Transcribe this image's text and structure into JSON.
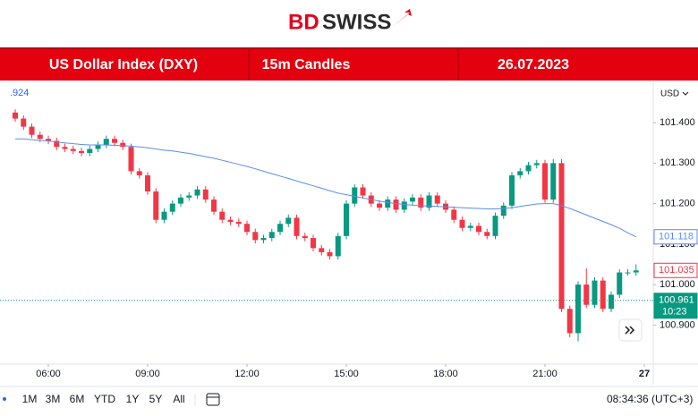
{
  "header": {
    "logo_parts": [
      "BD",
      "SWISS"
    ],
    "banner": [
      "US Dollar Index (DXY)",
      "15m Candles",
      "26.07.2023"
    ]
  },
  "chart_data": {
    "type": "candlestick",
    "legend_fragment": ".924",
    "currency": "USD",
    "x": [
      5,
      5.25,
      5.5,
      5.75,
      6,
      6.25,
      6.5,
      6.75,
      7,
      7.25,
      7.5,
      7.75,
      8,
      8.25,
      8.5,
      8.75,
      9,
      9.25,
      9.5,
      9.75,
      10,
      10.25,
      10.5,
      10.75,
      11,
      11.25,
      11.5,
      11.75,
      12,
      12.25,
      12.5,
      12.75,
      13,
      13.25,
      13.5,
      13.75,
      14,
      14.25,
      14.5,
      14.75,
      15,
      15.25,
      15.5,
      15.75,
      16,
      16.25,
      16.5,
      16.75,
      17,
      17.25,
      17.5,
      17.75,
      18,
      18.25,
      18.5,
      18.75,
      19,
      19.25,
      19.5,
      19.75,
      20,
      20.25,
      20.5,
      20.75,
      21,
      21.25,
      21.5,
      21.75,
      22,
      22.25,
      22.5,
      22.75,
      23,
      23.25,
      23.5,
      23.75
    ],
    "open": [
      101.425,
      101.41,
      101.39,
      101.37,
      101.36,
      101.355,
      101.34,
      101.335,
      101.33,
      101.325,
      101.335,
      101.345,
      101.36,
      101.35,
      101.34,
      101.28,
      101.27,
      101.23,
      101.16,
      101.18,
      101.2,
      101.215,
      101.22,
      101.235,
      101.21,
      101.18,
      101.16,
      101.155,
      101.15,
      101.13,
      101.11,
      101.115,
      101.13,
      101.15,
      101.165,
      101.12,
      101.115,
      101.09,
      101.08,
      101.07,
      101.12,
      101.2,
      101.24,
      101.22,
      101.2,
      101.19,
      101.21,
      101.185,
      101.205,
      101.215,
      101.19,
      101.22,
      101.2,
      101.185,
      101.16,
      101.14,
      101.145,
      101.13,
      101.12,
      101.17,
      101.195,
      101.27,
      101.28,
      101.295,
      101.3,
      101.21,
      101.3,
      100.94,
      100.88,
      101.0,
      100.95,
      101.01,
      100.94,
      100.975,
      101.03,
      101.03
    ],
    "high": [
      101.433,
      101.418,
      101.398,
      101.378,
      101.368,
      101.363,
      101.348,
      101.343,
      101.338,
      101.343,
      101.353,
      101.368,
      101.368,
      101.358,
      101.348,
      101.288,
      101.278,
      101.238,
      101.188,
      101.208,
      101.223,
      101.228,
      101.243,
      101.243,
      101.218,
      101.188,
      101.168,
      101.163,
      101.158,
      101.138,
      101.123,
      101.138,
      101.158,
      101.173,
      101.173,
      101.128,
      101.123,
      101.098,
      101.088,
      101.128,
      101.208,
      101.248,
      101.248,
      101.228,
      101.208,
      101.218,
      101.218,
      101.213,
      101.223,
      101.223,
      101.228,
      101.228,
      101.208,
      101.193,
      101.168,
      101.153,
      101.153,
      101.138,
      101.178,
      101.203,
      101.278,
      101.288,
      101.303,
      101.308,
      101.308,
      101.31,
      101.31,
      100.948,
      101.008,
      101.04,
      101.018,
      101.018,
      100.983,
      101.038,
      101.038,
      101.05
    ],
    "low": [
      101.402,
      101.382,
      101.362,
      101.352,
      101.347,
      101.332,
      101.327,
      101.322,
      101.317,
      101.317,
      101.327,
      101.337,
      101.342,
      101.332,
      101.272,
      101.262,
      101.222,
      101.152,
      101.152,
      101.172,
      101.192,
      101.207,
      101.212,
      101.202,
      101.172,
      101.152,
      101.147,
      101.142,
      101.122,
      101.102,
      101.102,
      101.107,
      101.122,
      101.142,
      101.112,
      101.107,
      101.082,
      101.072,
      101.062,
      101.062,
      101.112,
      101.192,
      101.212,
      101.192,
      101.182,
      101.182,
      101.177,
      101.177,
      101.197,
      101.182,
      101.182,
      101.192,
      101.177,
      101.152,
      101.132,
      101.132,
      101.122,
      101.112,
      101.112,
      101.162,
      101.187,
      101.262,
      101.272,
      101.287,
      101.202,
      101.202,
      100.932,
      100.87,
      100.86,
      100.942,
      100.942,
      100.932,
      100.932,
      100.967,
      101.022,
      101.022
    ],
    "close": [
      101.41,
      101.39,
      101.37,
      101.36,
      101.355,
      101.34,
      101.335,
      101.33,
      101.325,
      101.335,
      101.345,
      101.36,
      101.35,
      101.34,
      101.28,
      101.27,
      101.23,
      101.16,
      101.18,
      101.2,
      101.215,
      101.22,
      101.235,
      101.21,
      101.18,
      101.16,
      101.155,
      101.15,
      101.13,
      101.11,
      101.115,
      101.13,
      101.15,
      101.165,
      101.12,
      101.115,
      101.09,
      101.08,
      101.07,
      101.12,
      101.2,
      101.24,
      101.22,
      101.2,
      101.19,
      101.21,
      101.185,
      101.205,
      101.215,
      101.19,
      101.22,
      101.2,
      101.185,
      101.16,
      101.14,
      101.145,
      101.13,
      101.12,
      101.17,
      101.195,
      101.27,
      101.28,
      101.295,
      101.3,
      101.21,
      101.3,
      100.94,
      100.88,
      101.0,
      100.95,
      101.01,
      100.94,
      100.975,
      101.03,
      101.03,
      101.035
    ],
    "ma_values": [
      101.36,
      101.36,
      101.358,
      101.356,
      101.355,
      101.352,
      101.35,
      101.348,
      101.346,
      101.345,
      101.345,
      101.345,
      101.344,
      101.343,
      101.342,
      101.34,
      101.338,
      101.335,
      101.332,
      101.33,
      101.327,
      101.324,
      101.32,
      101.316,
      101.312,
      101.307,
      101.302,
      101.297,
      101.292,
      101.286,
      101.28,
      101.274,
      101.268,
      101.262,
      101.256,
      101.25,
      101.244,
      101.238,
      101.232,
      101.226,
      101.222,
      101.218,
      101.214,
      101.21,
      101.206,
      101.203,
      101.2,
      101.198,
      101.196,
      101.195,
      101.194,
      101.193,
      101.192,
      101.191,
      101.19,
      101.189,
      101.188,
      101.187,
      101.187,
      101.188,
      101.19,
      101.193,
      101.196,
      101.199,
      101.2,
      101.2,
      101.195,
      101.188,
      101.18,
      101.172,
      101.164,
      101.156,
      101.148,
      101.139,
      101.128,
      101.118
    ],
    "ma_color": "#5b8def",
    "up_color": "#089981",
    "down_color": "#f23645",
    "xlim": [
      4.54,
      24.27
    ],
    "ylim": [
      100.808,
      101.493
    ],
    "xticks": [
      {
        "value": 6,
        "label": "06:00"
      },
      {
        "value": 9,
        "label": "09:00"
      },
      {
        "value": 12,
        "label": "12:00"
      },
      {
        "value": 15,
        "label": "15:00"
      },
      {
        "value": 18,
        "label": "18:00"
      },
      {
        "value": 21,
        "label": "21:00"
      },
      {
        "value": 24,
        "label": "27"
      }
    ],
    "yticks": [
      {
        "value": 100.9,
        "label": "100.900"
      },
      {
        "value": 101.0,
        "label": "101.000"
      },
      {
        "value": 101.1,
        "label": "101.100"
      },
      {
        "value": 101.2,
        "label": "101.200"
      },
      {
        "value": 101.3,
        "label": "101.300"
      },
      {
        "value": 101.4,
        "label": "101.400"
      }
    ],
    "grid": false,
    "ma_price": {
      "value": 101.118,
      "label": "101.118"
    },
    "last_price": {
      "value": 101.035,
      "label": "101.035"
    },
    "current_price": {
      "value": 100.961,
      "label": "100.961"
    },
    "countdown": "10:23"
  },
  "toolbar": {
    "ranges": [
      "1M",
      "3M",
      "6M",
      "YTD",
      "1Y",
      "5Y",
      "All"
    ],
    "clock": "08:34:36 (UTC+3)"
  }
}
